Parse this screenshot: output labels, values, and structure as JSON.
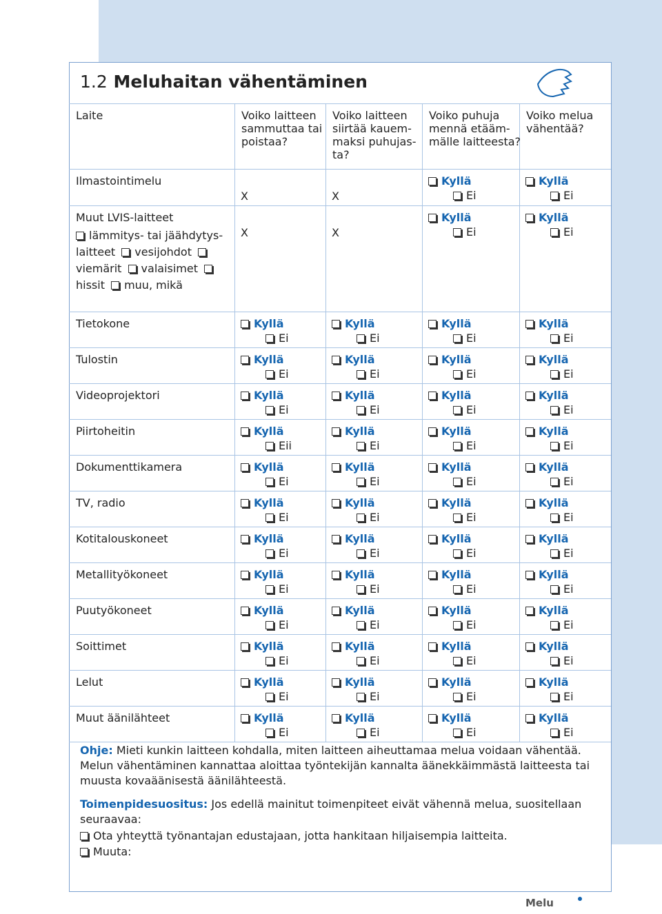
{
  "section": {
    "number": "1.2",
    "title": "Meluhaitan vähentäminen"
  },
  "table": {
    "headers": [
      [
        "Laite"
      ],
      [
        "Voiko laitteen",
        "sammuttaa tai",
        "poistaa?"
      ],
      [
        "Voiko laitteen",
        "siirtää kauem-",
        "maksi puhujas-",
        "ta?"
      ],
      [
        "Voiko puhuja",
        "mennä etääm-",
        "mälle laitteesta?"
      ],
      [
        "Voiko melua",
        "vähentää?"
      ]
    ],
    "rows": [
      {
        "device": "Ilmastointimelu",
        "cells": [
          "X",
          "X",
          {
            "yes": "Kyllä",
            "no": "Ei"
          },
          {
            "yes": "Kyllä",
            "no": "Ei"
          }
        ]
      },
      {
        "device": "Muut LVIS-laitteet",
        "options": [
          "lämmitys- tai jäähdytys-laitteet",
          "vesijohdot",
          "viemärit",
          "valaisimet",
          "hissit",
          "muu, mikä"
        ],
        "cells": [
          "X",
          "X",
          {
            "yes": "Kyllä",
            "no": "Ei"
          },
          {
            "yes": "Kyllä",
            "no": "Ei"
          }
        ]
      },
      {
        "device": "Tietokone",
        "cells": [
          {
            "yes": "Kyllä",
            "no": "Ei"
          },
          {
            "yes": "Kyllä",
            "no": "Ei"
          },
          {
            "yes": "Kyllä",
            "no": "Ei"
          },
          {
            "yes": "Kyllä",
            "no": "Ei"
          }
        ]
      },
      {
        "device": "Tulostin",
        "cells": [
          {
            "yes": "Kyllä",
            "no": "Ei"
          },
          {
            "yes": "Kyllä",
            "no": "Ei"
          },
          {
            "yes": "Kyllä",
            "no": "Ei"
          },
          {
            "yes": "Kyllä",
            "no": "Ei"
          }
        ]
      },
      {
        "device": "Videoprojektori",
        "cells": [
          {
            "yes": "Kyllä",
            "no": "Ei"
          },
          {
            "yes": "Kyllä",
            "no": "Ei"
          },
          {
            "yes": "Kyllä",
            "no": "Ei"
          },
          {
            "yes": "Kyllä",
            "no": "Ei"
          }
        ]
      },
      {
        "device": "Piirtoheitin",
        "cells": [
          {
            "yes": "Kyllä",
            "no": "Eii"
          },
          {
            "yes": "Kyllä",
            "no": "Ei"
          },
          {
            "yes": "Kyllä",
            "no": "Ei"
          },
          {
            "yes": "Kyllä",
            "no": "Ei"
          }
        ]
      },
      {
        "device": "Dokumenttikamera",
        "cells": [
          {
            "yes": "Kyllä",
            "no": "Ei"
          },
          {
            "yes": "Kyllä",
            "no": "Ei"
          },
          {
            "yes": "Kyllä",
            "no": "Ei"
          },
          {
            "yes": "Kyllä",
            "no": "Ei"
          }
        ]
      },
      {
        "device": "TV, radio",
        "cells": [
          {
            "yes": "Kyllä",
            "no": "Ei"
          },
          {
            "yes": "Kyllä",
            "no": "Ei"
          },
          {
            "yes": "Kyllä",
            "no": "Ei"
          },
          {
            "yes": "Kyllä",
            "no": "Ei"
          }
        ]
      },
      {
        "device": "Kotitalouskoneet",
        "cells": [
          {
            "yes": "Kyllä",
            "no": "Ei"
          },
          {
            "yes": "Kyllä",
            "no": "Ei"
          },
          {
            "yes": "Kyllä",
            "no": "Ei"
          },
          {
            "yes": "Kyllä",
            "no": "Ei"
          }
        ]
      },
      {
        "device": "Metallityökoneet",
        "cells": [
          {
            "yes": "Kyllä",
            "no": "Ei"
          },
          {
            "yes": "Kyllä",
            "no": "Ei"
          },
          {
            "yes": "Kyllä",
            "no": "Ei"
          },
          {
            "yes": "Kyllä",
            "no": "Ei"
          }
        ]
      },
      {
        "device": "Puutyökoneet",
        "cells": [
          {
            "yes": "Kyllä",
            "no": "Ei"
          },
          {
            "yes": "Kyllä",
            "no": "Ei"
          },
          {
            "yes": "Kyllä",
            "no": "Ei"
          },
          {
            "yes": "Kyllä",
            "no": "Ei"
          }
        ]
      },
      {
        "device": "Soittimet",
        "cells": [
          {
            "yes": "Kyllä",
            "no": "Ei"
          },
          {
            "yes": "Kyllä",
            "no": "Ei"
          },
          {
            "yes": "Kyllä",
            "no": "Ei"
          },
          {
            "yes": "Kyllä",
            "no": "Ei"
          }
        ]
      },
      {
        "device": "Lelut",
        "cells": [
          {
            "yes": "Kyllä",
            "no": "Ei"
          },
          {
            "yes": "Kyllä",
            "no": "Ei"
          },
          {
            "yes": "Kyllä",
            "no": "Ei"
          },
          {
            "yes": "Kyllä",
            "no": "Ei"
          }
        ]
      },
      {
        "device": "Muut äänilähteet",
        "cells": [
          {
            "yes": "Kyllä",
            "no": "Ei"
          },
          {
            "yes": "Kyllä",
            "no": "Ei"
          },
          {
            "yes": "Kyllä",
            "no": "Ei"
          },
          {
            "yes": "Kyllä",
            "no": "Ei"
          }
        ]
      }
    ]
  },
  "notes": {
    "guide": {
      "label": "Ohje:",
      "text": "Mieti kunkin laitteen kohdalla, miten laitteen aiheuttamaa melua voidaan vähentää. Melun vähentäminen kannattaa aloittaa työntekijän kannalta äänekkäimmästä laitteesta tai muusta kovaäänisestä äänilähteestä."
    },
    "recommendation": {
      "label": "Toimenpidesuositus:",
      "text": "Jos edellä mainitut toimenpiteet eivät vähennä melua, suositellaan seuraavaa:"
    },
    "options": [
      "Ota yhteyttä työnantajan edustajaan, jotta hankitaan hiljaisempia laitteita.",
      "Muuta:"
    ]
  },
  "footer": {
    "label": "Melu"
  }
}
